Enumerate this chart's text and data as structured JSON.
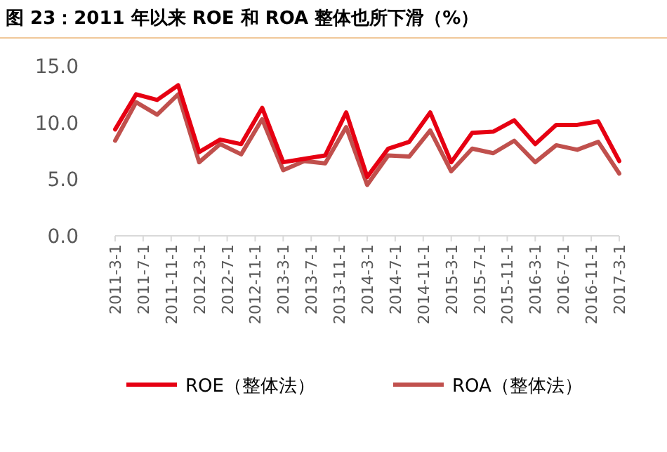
{
  "chart_data": {
    "type": "line",
    "title": "图 23：2011 年以来 ROE 和 ROA 整体也所下滑（%）",
    "x": [
      "2011-03",
      "2011-06",
      "2011-09",
      "2011-12",
      "2012-03",
      "2012-06",
      "2012-09",
      "2012-12",
      "2013-03",
      "2013-06",
      "2013-09",
      "2013-12",
      "2014-03",
      "2014-06",
      "2014-09",
      "2014-12",
      "2015-03",
      "2015-06",
      "2015-09",
      "2015-12",
      "2016-03",
      "2016-06",
      "2016-09",
      "2016-12",
      "2017-03"
    ],
    "series": [
      {
        "name": "ROE（整体法）",
        "color": "#e60012",
        "values": [
          9.4,
          12.5,
          12.0,
          13.3,
          7.4,
          8.5,
          8.1,
          11.3,
          6.5,
          6.8,
          7.1,
          10.9,
          5.2,
          7.7,
          8.3,
          10.9,
          6.5,
          9.1,
          9.2,
          10.2,
          8.1,
          9.8,
          9.8,
          10.1,
          6.6
        ]
      },
      {
        "name": "ROA（整体法）",
        "color": "#c0504d",
        "values": [
          8.4,
          11.8,
          10.7,
          12.5,
          6.5,
          8.1,
          7.2,
          10.3,
          5.8,
          6.6,
          6.4,
          9.6,
          4.5,
          7.1,
          7.0,
          9.3,
          5.7,
          7.7,
          7.3,
          8.4,
          6.5,
          8.0,
          7.6,
          8.3,
          5.5
        ]
      }
    ],
    "xlim": [
      "2011-03",
      "2017-03"
    ],
    "xticks": [
      {
        "value": "2011-03-01",
        "label": "2011-3-1"
      },
      {
        "value": "2011-07-01",
        "label": "2011-7-1"
      },
      {
        "value": "2011-11-01",
        "label": "2011-11-1"
      },
      {
        "value": "2012-03-01",
        "label": "2012-3-1"
      },
      {
        "value": "2012-07-01",
        "label": "2012-7-1"
      },
      {
        "value": "2012-11-01",
        "label": "2012-11-1"
      },
      {
        "value": "2013-03-01",
        "label": "2013-3-1"
      },
      {
        "value": "2013-07-01",
        "label": "2013-7-1"
      },
      {
        "value": "2013-11-01",
        "label": "2013-11-1"
      },
      {
        "value": "2014-03-01",
        "label": "2014-3-1"
      },
      {
        "value": "2014-07-01",
        "label": "2014-7-1"
      },
      {
        "value": "2014-11-01",
        "label": "2014-11-1"
      },
      {
        "value": "2015-03-01",
        "label": "2015-3-1"
      },
      {
        "value": "2015-07-01",
        "label": "2015-7-1"
      },
      {
        "value": "2015-11-01",
        "label": "2015-11-1"
      },
      {
        "value": "2016-03-01",
        "label": "2016-3-1"
      },
      {
        "value": "2016-07-01",
        "label": "2016-7-1"
      },
      {
        "value": "2016-11-01",
        "label": "2016-11-1"
      },
      {
        "value": "2017-03-01",
        "label": "2017-3-1"
      }
    ],
    "ylim": [
      0,
      15
    ],
    "yticks": [
      {
        "value": 0,
        "label": "0.0"
      },
      {
        "value": 5,
        "label": "5.0"
      },
      {
        "value": 10,
        "label": "10.0"
      },
      {
        "value": 15,
        "label": "15.0"
      }
    ],
    "legend": "bottom"
  }
}
